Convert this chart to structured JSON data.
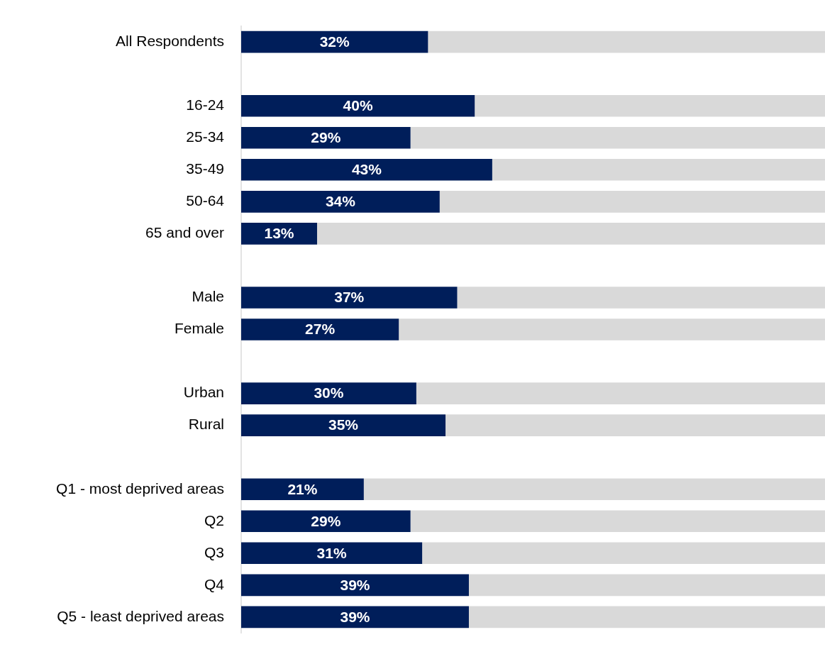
{
  "chart_data": {
    "type": "bar",
    "orientation": "horizontal",
    "stacked": true,
    "tick_labels": "y",
    "xlim": [
      0,
      100
    ],
    "categories": [
      "All Respondents",
      null,
      "16-24",
      "25-34",
      "35-49",
      "50-64",
      "65 and over",
      null,
      "Male",
      "Female",
      null,
      "Urban",
      "Rural",
      null,
      "Q1 - most deprived areas",
      "Q2",
      "Q3",
      "Q4",
      "Q5 - least deprived areas"
    ],
    "series": [
      {
        "color": "#001e5a",
        "values": [
          32,
          null,
          40,
          29,
          43,
          34,
          13,
          null,
          37,
          27,
          null,
          30,
          35,
          null,
          21,
          29,
          31,
          39,
          39
        ],
        "value_labels": [
          "32%",
          null,
          "40%",
          "29%",
          "43%",
          "34%",
          "13%",
          null,
          "37%",
          "27%",
          null,
          "30%",
          "35%",
          null,
          "21%",
          "29%",
          "31%",
          "39%",
          "39%"
        ]
      },
      {
        "color": "#d9d9d9",
        "values": [
          68,
          null,
          60,
          71,
          57,
          66,
          87,
          null,
          63,
          73,
          null,
          70,
          65,
          null,
          79,
          71,
          69,
          61,
          61
        ]
      }
    ]
  }
}
